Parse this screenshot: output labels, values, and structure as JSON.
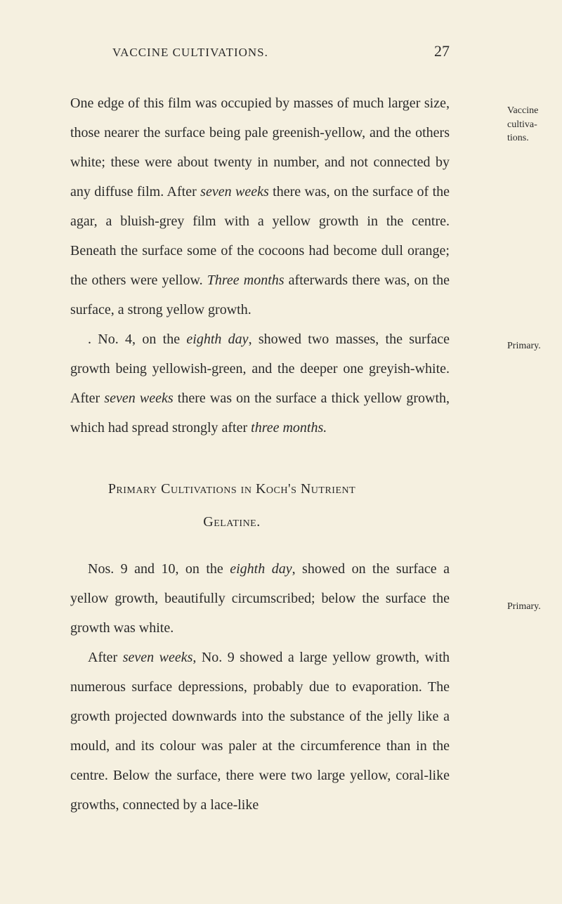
{
  "page": {
    "header_title": "VACCINE CULTIVATIONS.",
    "page_number": "27",
    "background_color": "#f5f0e0",
    "text_color": "#2a2a2a",
    "body_fontsize": 20,
    "header_fontsize": 17,
    "pagenum_fontsize": 22,
    "margin_fontsize": 14,
    "line_height": 2.1
  },
  "margin_notes": {
    "note1_line1": "Vaccine",
    "note1_line2": "cultiva-",
    "note1_line3": "tions.",
    "note2": "Primary.",
    "note3": "Primary."
  },
  "paragraphs": {
    "p1": {
      "text_before_italic1": "One edge of this film was occupied by masses of much larger size, those nearer the surface being pale greenish-yellow, and the others white; these were about twenty in number, and not connected by any diffuse film. After ",
      "italic1": "seven weeks",
      "text_after_italic1": " there was, on the surface of the agar, a bluish-grey film with a yellow growth in the centre. Beneath the surface some of the cocoons had become dull orange; the others were yellow. ",
      "italic2": "Three months",
      "text_after_italic2": " afterwards there was, on the surface, a strong yellow growth."
    },
    "p2": {
      "text_before_italic1": ". No. 4, on the ",
      "italic1": "eighth day",
      "text_after_italic1": ", showed two masses, the surface growth being yellowish-green, and the deeper one greyish-white. After ",
      "italic2": "seven weeks",
      "text_after_italic2": " there was on the surface a thick yellow growth, which had spread strongly after ",
      "italic3": "three months."
    },
    "heading": {
      "line1": "Primary Cultivations in Koch's Nutrient",
      "line2": "Gelatine."
    },
    "p3": {
      "text_before_italic1": "Nos. 9 and 10, on the ",
      "italic1": "eighth day",
      "text_after_italic1": ", showed on the surface a yellow growth, beautifully circumscribed; below the surface the growth was white."
    },
    "p4": {
      "text_before_italic1": "After ",
      "italic1": "seven weeks",
      "text_after_italic1": ", No. 9 showed a large yellow growth, with numerous surface depressions, probably due to evaporation. The growth projected downwards into the substance of the jelly like a mould, and its colour was paler at the circumference than in the centre. Below the surface, there were two large yellow, coral-like growths, connected by a lace-like"
    }
  }
}
